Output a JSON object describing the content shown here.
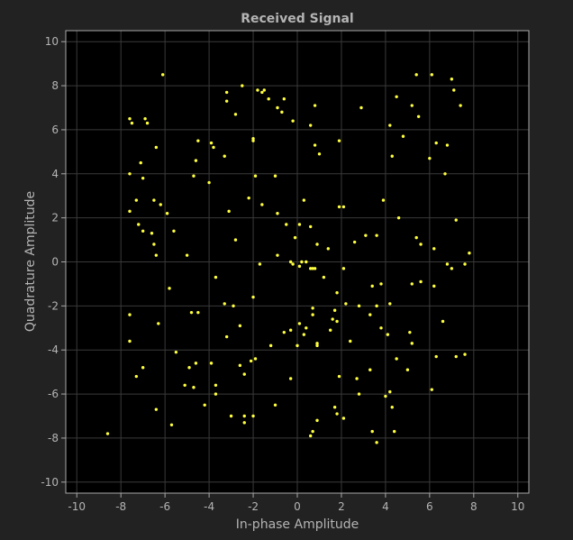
{
  "colors": {
    "figure_background": "#222222",
    "plot_background": "#000000",
    "grid": "#3a3a3a",
    "axis": "#a8a8a8",
    "text": "#b4b4b4",
    "marker": "#ffff40"
  },
  "chart_data": {
    "type": "scatter",
    "title": "Received Signal",
    "xlabel": "In-phase Amplitude",
    "ylabel": "Quadrature Amplitude",
    "xlim": [
      -10.5,
      10.5
    ],
    "ylim": [
      -10.5,
      10.5
    ],
    "xticks": [
      -10,
      -8,
      -6,
      -4,
      -2,
      0,
      2,
      4,
      6,
      8,
      10
    ],
    "yticks": [
      -10,
      -8,
      -6,
      -4,
      -2,
      0,
      2,
      4,
      6,
      8,
      10
    ],
    "grid": true,
    "legend": "none",
    "marker_color": "#ffff40",
    "series": [
      {
        "x": [
          -6.1,
          -7.6,
          -7.5,
          -6.9,
          -6.8,
          -7.6,
          -7.1,
          -6.4,
          -7.0,
          -2.8,
          -3.2,
          -2.5,
          -3.2,
          -4.5,
          -3.9,
          -4.6,
          -3.8,
          -3.3,
          -2.0,
          -2.0,
          -1.8,
          -1.6,
          -1.5,
          -1.3,
          -0.9,
          -0.6,
          -0.7,
          -0.2,
          0.8,
          0.6,
          0.8,
          1.0,
          2.9,
          1.9,
          4.2,
          4.5,
          5.2,
          5.4,
          5.5,
          6.1,
          7.0,
          7.1,
          7.4,
          6.3,
          6.8,
          6.7,
          6.0,
          4.3,
          4.8,
          -6.5,
          -7.3,
          -6.2,
          -5.9,
          -7.6,
          -7.2,
          -7.0,
          -6.6,
          -6.5,
          -6.4,
          -5.6,
          -5.0,
          -4.7,
          -4.0,
          -3.1,
          -2.8,
          -2.2,
          -1.9,
          -1.6,
          -1.0,
          -0.9,
          -0.5,
          0.1,
          -0.1,
          0.3,
          0.6,
          0.9,
          1.4,
          1.9,
          2.1,
          2.6,
          3.1,
          3.6,
          3.9,
          4.6,
          5.4,
          5.6,
          6.2,
          7.2,
          7.8,
          7.6,
          7.0,
          6.8,
          -5.8,
          -4.8,
          -4.5,
          -3.3,
          -2.9,
          -2.0,
          -1.7,
          -0.9,
          -0.3,
          0.2,
          0.8,
          1.2,
          1.8,
          2.1,
          2.8,
          3.3,
          3.8,
          4.2,
          5.2,
          5.6,
          6.2,
          6.6,
          0.7,
          0.6,
          0.4,
          0.1,
          -0.2,
          -7.6,
          -7.6,
          -7.0,
          -5.5,
          -4.9,
          -4.6,
          -3.9,
          -3.7,
          -3.2,
          -2.6,
          -2.1,
          -1.9,
          -2.4,
          -2.6,
          -3.7,
          -4.2,
          -4.7,
          -5.1,
          -6.4,
          -8.6,
          -5.7,
          -6.3,
          -7.3,
          -3.7,
          -3.0,
          -2.4,
          -2.4,
          -2.0,
          -1.0,
          -0.3,
          0.0,
          0.3,
          0.6,
          0.7,
          0.9,
          1.6,
          1.7,
          1.8,
          2.1,
          1.9,
          2.7,
          2.8,
          3.3,
          3.4,
          3.6,
          3.8,
          4.1,
          4.2,
          4.3,
          4.5,
          5.1,
          5.2,
          6.1,
          6.3,
          7.2,
          7.6,
          5.0,
          4.4,
          4.0,
          3.6,
          3.4,
          2.4,
          1.7,
          1.5,
          0.4,
          0.1,
          -0.3,
          -1.2,
          -0.6,
          0.9,
          0.7,
          0.7,
          0.9,
          1.8,
          2.2
        ],
        "y": [
          8.5,
          6.5,
          6.3,
          6.5,
          6.3,
          4.0,
          4.5,
          5.2,
          3.8,
          6.7,
          7.3,
          8.0,
          7.7,
          5.5,
          5.4,
          4.6,
          5.2,
          4.8,
          5.5,
          5.6,
          7.8,
          7.7,
          7.8,
          7.4,
          7.0,
          7.4,
          6.8,
          6.4,
          7.1,
          6.2,
          5.3,
          4.9,
          7.0,
          5.5,
          6.2,
          7.5,
          7.1,
          8.5,
          6.6,
          8.5,
          8.3,
          7.8,
          7.1,
          5.4,
          5.3,
          4.0,
          4.7,
          4.8,
          5.7,
          2.8,
          2.8,
          2.6,
          2.2,
          2.3,
          1.7,
          1.4,
          1.3,
          0.8,
          0.3,
          1.4,
          0.3,
          3.9,
          3.6,
          2.3,
          1.0,
          2.9,
          3.9,
          2.6,
          3.9,
          2.2,
          1.7,
          1.7,
          1.1,
          2.8,
          1.6,
          0.8,
          0.6,
          2.5,
          2.5,
          0.9,
          1.2,
          1.2,
          2.8,
          2.0,
          1.1,
          0.8,
          0.6,
          1.9,
          0.4,
          -0.1,
          -0.3,
          -0.1,
          -1.2,
          -2.3,
          -2.3,
          -1.9,
          -2.0,
          -1.6,
          -0.1,
          0.3,
          0.0,
          0.0,
          -0.3,
          -0.7,
          -1.4,
          -0.3,
          -2.0,
          -2.4,
          -1.0,
          -1.9,
          -1.0,
          -0.9,
          -1.1,
          -2.7,
          -0.3,
          -0.3,
          0.0,
          -0.2,
          -0.1,
          -2.4,
          -3.6,
          -4.8,
          -4.1,
          -4.8,
          -4.6,
          -4.6,
          -5.6,
          -3.4,
          -4.7,
          -4.5,
          -4.4,
          -5.1,
          -2.9,
          -6.0,
          -6.5,
          -5.7,
          -5.6,
          -6.7,
          -7.8,
          -7.4,
          -2.8,
          -5.2,
          -0.7,
          -7.0,
          -7.0,
          -7.3,
          -7.0,
          -6.5,
          -5.3,
          -3.8,
          -3.3,
          -7.9,
          -7.7,
          -7.2,
          -2.6,
          -6.6,
          -6.9,
          -7.1,
          -5.2,
          -5.3,
          -6.0,
          -4.9,
          -7.7,
          -8.2,
          -3.0,
          -3.3,
          -5.9,
          -6.6,
          -4.4,
          -3.2,
          -3.7,
          -5.8,
          -4.3,
          -4.3,
          -4.2,
          -4.9,
          -7.7,
          -6.1,
          -2.0,
          -1.1,
          -3.6,
          -2.2,
          -3.1,
          -3.0,
          -2.8,
          -3.1,
          -3.8,
          -3.2,
          -3.8,
          -2.1,
          -2.4,
          -3.7,
          -2.7,
          -1.9
        ]
      }
    ]
  }
}
